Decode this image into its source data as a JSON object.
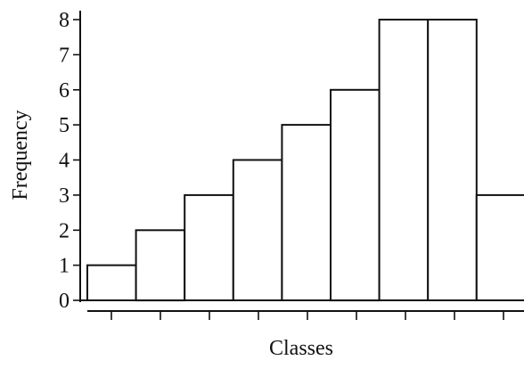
{
  "chart_data": {
    "type": "bar",
    "title": "",
    "xlabel": "Classes",
    "ylabel": "Frequency",
    "categories": [
      "",
      "",
      "",
      "",
      "",
      "",
      "",
      "",
      ""
    ],
    "values": [
      1,
      2,
      3,
      4,
      5,
      6,
      8,
      8,
      3
    ],
    "yticks": [
      "0",
      "1",
      "2",
      "3",
      "4",
      "5",
      "6",
      "7",
      "8"
    ],
    "ylim": [
      0,
      8
    ],
    "grid": false,
    "legend": "none"
  }
}
